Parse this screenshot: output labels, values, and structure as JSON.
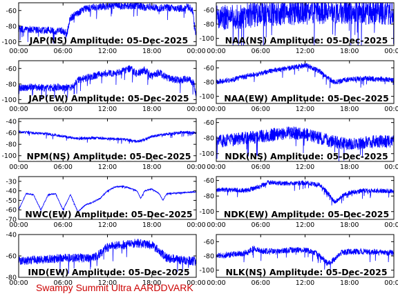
{
  "footer_text": "Swampy Summit Ultra AARDDVARK",
  "colors": {
    "trace": "#0000ff",
    "axis": "#000000",
    "footer": "#cc0000",
    "background": "#ffffff"
  },
  "x_ticks": [
    "00:00",
    "06:00",
    "12:00",
    "18:00",
    "00:00"
  ],
  "chart_data": [
    {
      "type": "line",
      "title": "JAP(NS) Amplitude: 05-Dec-2025",
      "xlabel": "",
      "ylabel": "",
      "ylim": [
        -105,
        -50
      ],
      "yticks": [
        -60,
        -80,
        -100
      ],
      "xlim": [
        0,
        24
      ],
      "grid": false,
      "series": [
        {
          "x": [
            0,
            1,
            2,
            3,
            4,
            5,
            6,
            6.5,
            7,
            8,
            9,
            10,
            11,
            12,
            13,
            14,
            15,
            16,
            17,
            18,
            19,
            20,
            21,
            22,
            23,
            23.5,
            24
          ],
          "values": [
            -83,
            -85,
            -84,
            -86,
            -85,
            -87,
            -86,
            -90,
            -70,
            -63,
            -58,
            -56,
            -55,
            -55,
            -53,
            -54,
            -54,
            -53,
            -56,
            -55,
            -57,
            -56,
            -58,
            -57,
            -55,
            -60,
            -95
          ],
          "noise": 8
        }
      ]
    },
    {
      "type": "line",
      "title": "NAA(NS) Amplitude: 05-Dec-2025",
      "xlabel": "",
      "ylabel": "",
      "ylim": [
        -110,
        -50
      ],
      "yticks": [
        -60,
        -80,
        -100
      ],
      "xlim": [
        0,
        24
      ],
      "grid": false,
      "series": [
        {
          "x": [
            0,
            2,
            4,
            6,
            8,
            10,
            12,
            14,
            16,
            18,
            20,
            22,
            24
          ],
          "values": [
            -72,
            -70,
            -68,
            -66,
            -65,
            -64,
            -63,
            -62,
            -63,
            -62,
            -64,
            -63,
            -64
          ],
          "noise": 30
        }
      ]
    },
    {
      "type": "line",
      "title": "JAP(EW) Amplitude: 05-Dec-2025",
      "xlabel": "",
      "ylabel": "",
      "ylim": [
        -105,
        -50
      ],
      "yticks": [
        -60,
        -80,
        -100
      ],
      "xlim": [
        0,
        24
      ],
      "grid": false,
      "series": [
        {
          "x": [
            0,
            2,
            4,
            6,
            7,
            8,
            10,
            12,
            13,
            14,
            15,
            16,
            17,
            18,
            19,
            20,
            21,
            22,
            23,
            23.7,
            24
          ],
          "values": [
            -85,
            -84,
            -85,
            -84,
            -86,
            -75,
            -70,
            -66,
            -67,
            -64,
            -60,
            -67,
            -62,
            -70,
            -65,
            -72,
            -74,
            -75,
            -73,
            -80,
            -95
          ],
          "noise": 8
        }
      ]
    },
    {
      "type": "line",
      "title": "NAA(EW) Amplitude: 05-Dec-2025",
      "xlabel": "",
      "ylabel": "",
      "ylim": [
        -110,
        -50
      ],
      "yticks": [
        -60,
        -80,
        -100
      ],
      "xlim": [
        0,
        24
      ],
      "grid": false,
      "series": [
        {
          "x": [
            0,
            2,
            4,
            6,
            8,
            10,
            12,
            13,
            14,
            15,
            16,
            17,
            18,
            20,
            22,
            24
          ],
          "values": [
            -80,
            -77,
            -72,
            -68,
            -63,
            -60,
            -56,
            -60,
            -65,
            -74,
            -80,
            -78,
            -76,
            -75,
            -76,
            -77
          ],
          "noise": 6
        }
      ]
    },
    {
      "type": "line",
      "title": "NPM(NS) Amplitude: 05-Dec-2025",
      "xlabel": "",
      "ylabel": "",
      "ylim": [
        -110,
        -35
      ],
      "yticks": [
        -40,
        -60,
        -80,
        -100
      ],
      "xlim": [
        0,
        24
      ],
      "grid": false,
      "series": [
        {
          "x": [
            0,
            2,
            4,
            6,
            8,
            10,
            12,
            14,
            16,
            17,
            18,
            20,
            22,
            24
          ],
          "values": [
            -58,
            -60,
            -62,
            -66,
            -70,
            -69,
            -70,
            -71,
            -75,
            -72,
            -66,
            -62,
            -59,
            -60
          ],
          "noise": 4
        }
      ]
    },
    {
      "type": "line",
      "title": "NDK(NS) Amplitude: 05-Dec-2025",
      "xlabel": "",
      "ylabel": "",
      "ylim": [
        -110,
        -55
      ],
      "yticks": [
        -60,
        -80,
        -100
      ],
      "xlim": [
        0,
        24
      ],
      "grid": false,
      "series": [
        {
          "x": [
            0,
            2,
            4,
            6,
            8,
            10,
            12,
            14,
            16,
            18,
            20,
            22,
            24
          ],
          "values": [
            -85,
            -82,
            -80,
            -78,
            -75,
            -73,
            -75,
            -80,
            -85,
            -88,
            -86,
            -84,
            -85
          ],
          "noise": 14
        }
      ]
    },
    {
      "type": "line",
      "title": "NWC(EW) Amplitude: 05-Dec-2025",
      "xlabel": "",
      "ylabel": "",
      "ylim": [
        -70,
        -25
      ],
      "yticks": [
        -30,
        -40,
        -50,
        -60,
        -70
      ],
      "xlim": [
        0,
        24
      ],
      "grid": false,
      "series": [
        {
          "x": [
            0,
            1,
            2,
            3,
            4,
            5,
            6,
            7,
            8,
            9,
            10,
            11,
            12,
            13,
            14,
            15,
            16,
            16.5,
            17,
            18,
            19,
            19.5,
            20,
            22,
            24
          ],
          "values": [
            -60,
            -43,
            -44,
            -60,
            -44,
            -43,
            -60,
            -44,
            -62,
            -55,
            -52,
            -48,
            -40,
            -36,
            -35,
            -37,
            -40,
            -48,
            -40,
            -38,
            -43,
            -50,
            -43,
            -42,
            -41
          ],
          "noise": 1
        }
      ]
    },
    {
      "type": "line",
      "title": "NDK(EW) Amplitude: 05-Dec-2025",
      "xlabel": "",
      "ylabel": "",
      "ylim": [
        -110,
        -55
      ],
      "yticks": [
        -60,
        -80,
        -100
      ],
      "xlim": [
        0,
        24
      ],
      "grid": false,
      "series": [
        {
          "x": [
            0,
            2,
            4,
            6,
            7,
            8,
            10,
            12,
            14,
            15,
            16,
            17,
            18,
            20,
            22,
            24
          ],
          "values": [
            -72,
            -72,
            -73,
            -68,
            -62,
            -63,
            -64,
            -63,
            -66,
            -75,
            -88,
            -80,
            -76,
            -73,
            -73,
            -74
          ],
          "noise": 5
        }
      ]
    },
    {
      "type": "line",
      "title": "IND(EW) Amplitude: 05-Dec-2025",
      "xlabel": "",
      "ylabel": "",
      "ylim": [
        -80,
        -40
      ],
      "yticks": [
        -40,
        -60,
        -80
      ],
      "xlim": [
        0,
        24
      ],
      "grid": false,
      "series": [
        {
          "x": [
            0,
            2,
            4,
            6,
            8,
            10,
            11,
            12,
            13,
            14,
            16,
            18,
            19,
            20,
            22,
            24
          ],
          "values": [
            -65,
            -64,
            -63,
            -62,
            -62,
            -62,
            -58,
            -52,
            -50,
            -50,
            -48,
            -50,
            -55,
            -62,
            -64,
            -65
          ],
          "noise": 7
        }
      ]
    },
    {
      "type": "line",
      "title": "NLK(NS) Amplitude: 05-Dec-2025",
      "xlabel": "",
      "ylabel": "",
      "ylim": [
        -110,
        -50
      ],
      "yticks": [
        -60,
        -80,
        -100
      ],
      "xlim": [
        0,
        24
      ],
      "grid": false,
      "series": [
        {
          "x": [
            0,
            2,
            4,
            5,
            6,
            8,
            10,
            12,
            13,
            14,
            15,
            16,
            17,
            18,
            20,
            22,
            24
          ],
          "values": [
            -80,
            -78,
            -76,
            -70,
            -73,
            -74,
            -72,
            -72,
            -74,
            -80,
            -90,
            -85,
            -75,
            -74,
            -74,
            -75,
            -76
          ],
          "noise": 7
        }
      ]
    }
  ]
}
